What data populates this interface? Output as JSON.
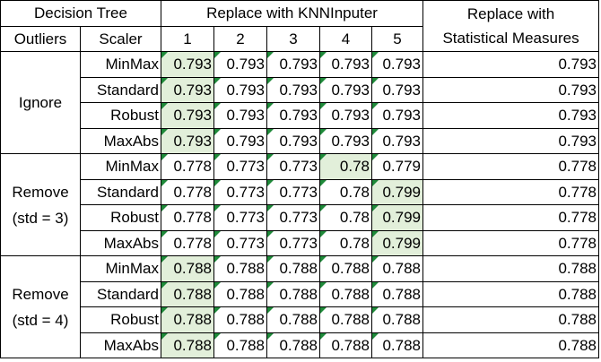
{
  "header": {
    "model": "Decision Tree",
    "knn_group": "Replace with KNNInputer",
    "stat_group_line1": "Replace with",
    "stat_group_line2": "Statistical Measures",
    "outliers": "Outliers",
    "scaler": "Scaler",
    "k": [
      "1",
      "2",
      "3",
      "4",
      "5"
    ]
  },
  "groups": [
    {
      "label_line1": "Ignore",
      "label_line2": "",
      "rows": [
        {
          "scaler": "MinMax",
          "knn": [
            "0.793",
            "0.793",
            "0.793",
            "0.793",
            "0.793"
          ],
          "stat": "0.793"
        },
        {
          "scaler": "Standard",
          "knn": [
            "0.793",
            "0.793",
            "0.793",
            "0.793",
            "0.793"
          ],
          "stat": "0.793"
        },
        {
          "scaler": "Robust",
          "knn": [
            "0.793",
            "0.793",
            "0.793",
            "0.793",
            "0.793"
          ],
          "stat": "0.793"
        },
        {
          "scaler": "MaxAbs",
          "knn": [
            "0.793",
            "0.793",
            "0.793",
            "0.793",
            "0.793"
          ],
          "stat": "0.793"
        }
      ]
    },
    {
      "label_line1": "Remove",
      "label_line2": "(std = 3)",
      "rows": [
        {
          "scaler": "MinMax",
          "knn": [
            "0.778",
            "0.773",
            "0.773",
            "0.78",
            "0.779"
          ],
          "stat": "0.778"
        },
        {
          "scaler": "Standard",
          "knn": [
            "0.778",
            "0.773",
            "0.773",
            "0.78",
            "0.799"
          ],
          "stat": "0.778"
        },
        {
          "scaler": "Robust",
          "knn": [
            "0.778",
            "0.773",
            "0.773",
            "0.78",
            "0.799"
          ],
          "stat": "0.778"
        },
        {
          "scaler": "MaxAbs",
          "knn": [
            "0.778",
            "0.773",
            "0.773",
            "0.78",
            "0.799"
          ],
          "stat": "0.778"
        }
      ]
    },
    {
      "label_line1": "Remove",
      "label_line2": "(std = 4)",
      "rows": [
        {
          "scaler": "MinMax",
          "knn": [
            "0.788",
            "0.788",
            "0.788",
            "0.788",
            "0.788"
          ],
          "stat": "0.788"
        },
        {
          "scaler": "Standard",
          "knn": [
            "0.788",
            "0.788",
            "0.788",
            "0.788",
            "0.788"
          ],
          "stat": "0.788"
        },
        {
          "scaler": "Robust",
          "knn": [
            "0.788",
            "0.788",
            "0.788",
            "0.788",
            "0.788"
          ],
          "stat": "0.788"
        },
        {
          "scaler": "MaxAbs",
          "knn": [
            "0.788",
            "0.788",
            "0.788",
            "0.788",
            "0.788"
          ],
          "stat": "0.788"
        }
      ]
    }
  ],
  "highlight_color": "#e2efda",
  "flag_color": "#1f8a3a",
  "highlights": [
    [
      [
        0
      ],
      [
        0
      ],
      [
        0
      ],
      [
        0
      ]
    ],
    [
      [
        3
      ],
      [
        4
      ],
      [
        4
      ],
      [
        4
      ]
    ],
    [
      [
        0
      ],
      [
        0
      ],
      [
        0
      ],
      [
        0
      ]
    ]
  ]
}
